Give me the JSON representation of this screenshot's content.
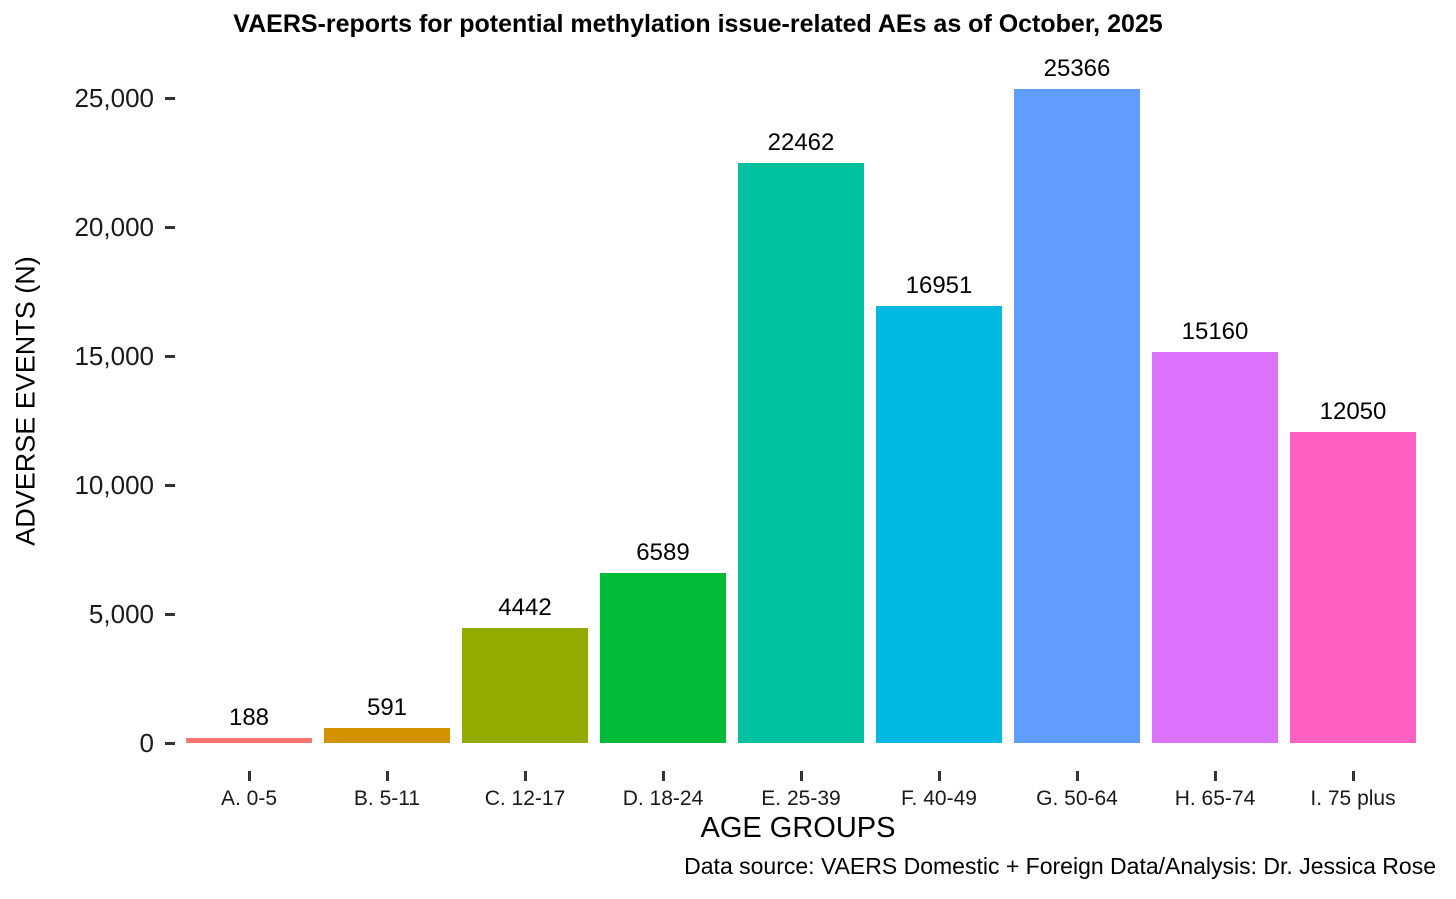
{
  "page": {
    "background_color": "#FFFFFF",
    "text_color": "#000000",
    "tick_color": "#333333"
  },
  "chart_data": {
    "type": "bar",
    "title": "VAERS-reports for potential methylation issue-related AEs as of October, 2025",
    "xlabel": "AGE GROUPS",
    "ylabel": "ADVERSE EVENTS (N)",
    "caption": "Data source: VAERS Domestic + Foreign Data/Analysis: Dr. Jessica Rose",
    "categories": [
      "A. 0-5",
      "B. 5-11",
      "C. 12-17",
      "D. 18-24",
      "E. 25-39",
      "F. 40-49",
      "G. 50-64",
      "H. 65-74",
      "I. 75 plus"
    ],
    "values": [
      188,
      591,
      4442,
      6589,
      22462,
      16951,
      25366,
      15160,
      12050
    ],
    "value_labels": [
      "188",
      "591",
      "4442",
      "6589",
      "22462",
      "16951",
      "25366",
      "15160",
      "12050"
    ],
    "bar_colors": [
      "#F8766D",
      "#D39200",
      "#93AA00",
      "#00BA38",
      "#00C19F",
      "#00B9E3",
      "#619CFF",
      "#DB72FB",
      "#FF61C3"
    ],
    "y_ticks": [
      {
        "value": 0,
        "label": "0"
      },
      {
        "value": 5000,
        "label": "5,000"
      },
      {
        "value": 10000,
        "label": "10,000"
      },
      {
        "value": 15000,
        "label": "15,000"
      },
      {
        "value": 20000,
        "label": "20,000"
      },
      {
        "value": 25000,
        "label": "25,000"
      }
    ],
    "ylim": [
      0,
      26500
    ],
    "grid": "off",
    "legend": "none",
    "bar_label_position": "above"
  }
}
